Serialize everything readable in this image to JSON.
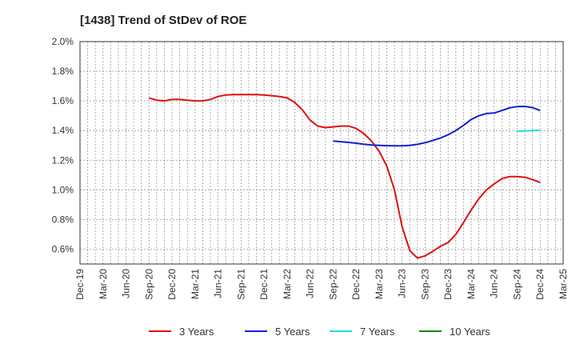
{
  "chart_data": {
    "type": "line",
    "title": "[1438]  Trend of StDev of ROE",
    "xlabel": "",
    "ylabel": "",
    "ylim": [
      0.5,
      2.0
    ],
    "y_ticks": [
      0.6,
      0.8,
      1.0,
      1.2,
      1.4,
      1.6,
      1.8,
      2.0
    ],
    "y_tick_labels": [
      "0.6%",
      "0.8%",
      "1.0%",
      "1.2%",
      "1.4%",
      "1.6%",
      "1.8%",
      "2.0%"
    ],
    "x_tick_labels": [
      "Dec-19",
      "Mar-20",
      "Jun-20",
      "Sep-20",
      "Dec-20",
      "Mar-21",
      "Jun-21",
      "Sep-21",
      "Dec-21",
      "Mar-22",
      "Jun-22",
      "Sep-22",
      "Dec-22",
      "Mar-23",
      "Jun-23",
      "Sep-23",
      "Dec-23",
      "Mar-24",
      "Jun-24",
      "Sep-24",
      "Dec-24",
      "Mar-25"
    ],
    "x_unit": "month index from Dec-19",
    "grid": true,
    "legend_position": "bottom",
    "series": [
      {
        "name": "3 Years",
        "color": "#dd1111",
        "points": [
          [
            9,
            1.62
          ],
          [
            10,
            1.605
          ],
          [
            11,
            1.6
          ],
          [
            12,
            1.61
          ],
          [
            13,
            1.61
          ],
          [
            14,
            1.605
          ],
          [
            15,
            1.6
          ],
          [
            16,
            1.6
          ],
          [
            17,
            1.61
          ],
          [
            18,
            1.63
          ],
          [
            19,
            1.64
          ],
          [
            20,
            1.643
          ],
          [
            21,
            1.643
          ],
          [
            22,
            1.643
          ],
          [
            23,
            1.642
          ],
          [
            24,
            1.64
          ],
          [
            25,
            1.635
          ],
          [
            26,
            1.63
          ],
          [
            27,
            1.62
          ],
          [
            28,
            1.59
          ],
          [
            29,
            1.54
          ],
          [
            30,
            1.47
          ],
          [
            31,
            1.43
          ],
          [
            32,
            1.42
          ],
          [
            33,
            1.425
          ],
          [
            34,
            1.43
          ],
          [
            35,
            1.43
          ],
          [
            36,
            1.415
          ],
          [
            37,
            1.38
          ],
          [
            38,
            1.33
          ],
          [
            39,
            1.26
          ],
          [
            40,
            1.16
          ],
          [
            41,
            1.0
          ],
          [
            42,
            0.75
          ],
          [
            43,
            0.59
          ],
          [
            44,
            0.54
          ],
          [
            45,
            0.555
          ],
          [
            46,
            0.585
          ],
          [
            47,
            0.62
          ],
          [
            48,
            0.645
          ],
          [
            49,
            0.7
          ],
          [
            50,
            0.78
          ],
          [
            51,
            0.865
          ],
          [
            52,
            0.94
          ],
          [
            53,
            1.0
          ],
          [
            54,
            1.04
          ],
          [
            55,
            1.075
          ],
          [
            56,
            1.09
          ],
          [
            57,
            1.09
          ],
          [
            58,
            1.085
          ],
          [
            59,
            1.07
          ],
          [
            60,
            1.05
          ]
        ]
      },
      {
        "name": "5 Years",
        "color": "#1122cc",
        "points": [
          [
            33,
            1.33
          ],
          [
            34,
            1.325
          ],
          [
            35,
            1.32
          ],
          [
            36,
            1.315
          ],
          [
            37,
            1.308
          ],
          [
            38,
            1.303
          ],
          [
            39,
            1.3
          ],
          [
            40,
            1.298
          ],
          [
            41,
            1.297
          ],
          [
            42,
            1.297
          ],
          [
            43,
            1.3
          ],
          [
            44,
            1.307
          ],
          [
            45,
            1.318
          ],
          [
            46,
            1.333
          ],
          [
            47,
            1.35
          ],
          [
            48,
            1.372
          ],
          [
            49,
            1.4
          ],
          [
            50,
            1.435
          ],
          [
            51,
            1.475
          ],
          [
            52,
            1.5
          ],
          [
            53,
            1.515
          ],
          [
            54,
            1.518
          ],
          [
            55,
            1.535
          ],
          [
            56,
            1.553
          ],
          [
            57,
            1.562
          ],
          [
            58,
            1.563
          ],
          [
            59,
            1.555
          ],
          [
            60,
            1.535
          ]
        ]
      },
      {
        "name": "7 Years",
        "color": "#22dddd",
        "points": [
          [
            57,
            1.395
          ],
          [
            58,
            1.398
          ],
          [
            59,
            1.4
          ],
          [
            60,
            1.402
          ]
        ]
      },
      {
        "name": "10 Years",
        "color": "#118811",
        "points": []
      }
    ]
  }
}
